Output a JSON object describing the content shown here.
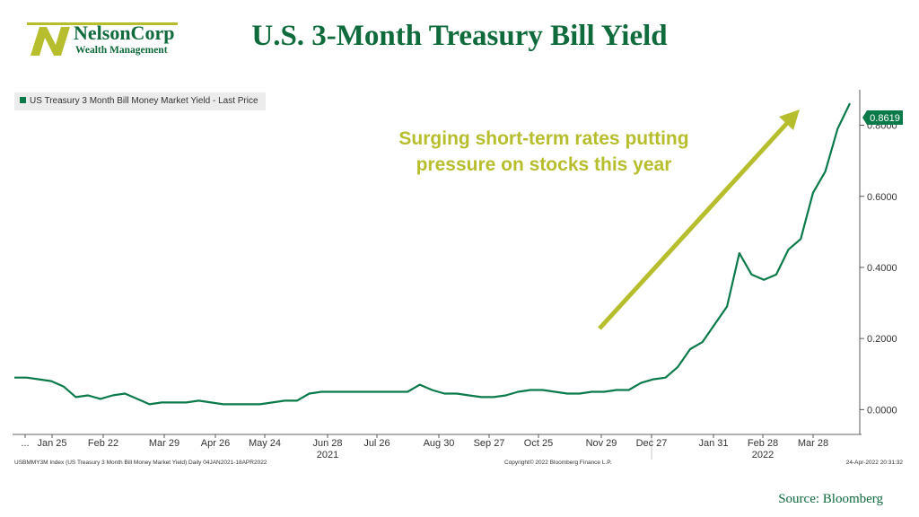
{
  "header": {
    "title": "U.S. 3-Month Treasury Bill Yield",
    "logo_name": "NelsonCorp",
    "logo_sub": "Wealth Management"
  },
  "annotation": {
    "line1": "Surging short-term rates putting",
    "line2": "pressure on stocks this year"
  },
  "footer": {
    "left": "USBMMY3M Index (US Treasury 3 Month Bill Money Market Yield)  Daily 04JAN2021-18APR2022",
    "center": "Copyright© 2022 Bloomberg Finance L.P.",
    "right": "24-Apr-2022 20:31:32",
    "source": "Source:  Bloomberg"
  },
  "colors": {
    "brand_green": "#0f6a3c",
    "series_line": "#0b7a4a",
    "annotation": "#b7be2e"
  },
  "chart_data": {
    "type": "line",
    "legend_label": "US Treasury 3 Month Bill Money Market Yield - Last Price",
    "last_value_label": "0.8619",
    "ylim": [
      -0.07,
      0.9
    ],
    "y_ticks": [
      0.0,
      0.2,
      0.4,
      0.6,
      0.8
    ],
    "y_tick_labels": [
      "0.0000",
      "0.2000",
      "0.4000",
      "0.6000",
      "0.8000"
    ],
    "x_tick_labels": [
      "...",
      "Jan 25",
      "Feb 22",
      "Mar 29",
      "Apr 26",
      "May 24",
      "Jun 28",
      "Jul 26",
      "Aug 30",
      "Sep 27",
      "Oct 25",
      "Nov 29",
      "Dec 27",
      "Jan 31",
      "Feb 28",
      "Mar 28"
    ],
    "x_year_labels": [
      {
        "label": "2021",
        "at": "Jun 28"
      },
      {
        "label": "2022",
        "at": "Feb 28"
      }
    ],
    "legend_position": "top-left",
    "series": [
      {
        "values": [
          0.09,
          0.09,
          0.085,
          0.08,
          0.065,
          0.035,
          0.04,
          0.03,
          0.04,
          0.045,
          0.03,
          0.015,
          0.02,
          0.02,
          0.02,
          0.025,
          0.02,
          0.015,
          0.015,
          0.015,
          0.015,
          0.02,
          0.025,
          0.025,
          0.045,
          0.05,
          0.05,
          0.05,
          0.05,
          0.05,
          0.05,
          0.05,
          0.05,
          0.07,
          0.055,
          0.045,
          0.045,
          0.04,
          0.035,
          0.035,
          0.04,
          0.05,
          0.055,
          0.055,
          0.05,
          0.045,
          0.045,
          0.05,
          0.05,
          0.055,
          0.055,
          0.075,
          0.085,
          0.09,
          0.12,
          0.17,
          0.19,
          0.24,
          0.29,
          0.44,
          0.38,
          0.365,
          0.38,
          0.45,
          0.48,
          0.61,
          0.67,
          0.79,
          0.8619
        ]
      }
    ]
  }
}
